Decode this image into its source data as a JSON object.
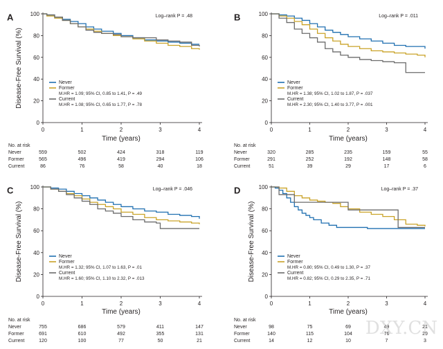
{
  "colors": {
    "Never": "#1f6fb0",
    "Former": "#c9a227",
    "Current": "#6b6b6b",
    "axis": "#231f20"
  },
  "watermark": "DXY.CN",
  "chart_data": [
    {
      "type": "line",
      "panel": "A",
      "ylabel": "Disease-Free Survival (%)",
      "xlabel": "Time (years)",
      "xlim": [
        0,
        4
      ],
      "ylim": [
        0,
        100
      ],
      "x_ticks": [
        "0",
        "1",
        "2",
        "3",
        "4"
      ],
      "y_ticks": [
        "0",
        "20",
        "40",
        "60",
        "80",
        "100"
      ],
      "logrank": "Log–rank P = .48",
      "legend_position": "lower-left",
      "legend": [
        {
          "name": "Never",
          "lines": []
        },
        {
          "name": "Former",
          "lines": [
            "M.HR = 1.09; 95% CI, 0.85 to 1.41, P = .49"
          ]
        },
        {
          "name": "Current",
          "lines": [
            "M.HR = 1.08; 95% CI, 0.65 to 1.77, P = .78"
          ]
        }
      ],
      "series": [
        {
          "name": "Never",
          "x": [
            0,
            0.1,
            0.3,
            0.5,
            0.7,
            0.9,
            1.1,
            1.3,
            1.5,
            1.8,
            2.0,
            2.3,
            2.6,
            2.9,
            3.2,
            3.5,
            3.8,
            4.0
          ],
          "y": [
            100,
            99,
            97,
            95,
            93,
            91,
            88,
            86,
            84,
            82,
            80,
            78,
            76,
            75,
            74,
            73,
            72,
            72
          ]
        },
        {
          "name": "Former",
          "x": [
            0,
            0.1,
            0.3,
            0.5,
            0.7,
            0.9,
            1.1,
            1.3,
            1.5,
            1.8,
            2.0,
            2.3,
            2.6,
            2.9,
            3.2,
            3.5,
            3.8,
            4.0
          ],
          "y": [
            100,
            98,
            96,
            94,
            91,
            88,
            86,
            84,
            82,
            80,
            79,
            77,
            75,
            73,
            71,
            70,
            68,
            67
          ]
        },
        {
          "name": "Current",
          "x": [
            0,
            0.1,
            0.3,
            0.5,
            0.7,
            0.9,
            1.1,
            1.3,
            1.5,
            1.8,
            2.0,
            2.3,
            2.6,
            2.9,
            3.2,
            3.5,
            3.8,
            4.0
          ],
          "y": [
            100,
            99,
            97,
            94,
            91,
            88,
            85,
            83,
            82,
            81,
            79,
            78,
            78,
            76,
            75,
            74,
            71,
            70
          ]
        }
      ],
      "risk_table": {
        "title": "No. at risk",
        "rows": [
          {
            "label": "Never",
            "values": [
              "559",
              "502",
              "424",
              "318",
              "119"
            ]
          },
          {
            "label": "Former",
            "values": [
              "565",
              "496",
              "419",
              "294",
              "106"
            ]
          },
          {
            "label": "Current",
            "values": [
              "86",
              "76",
              "58",
              "40",
              "18"
            ]
          }
        ]
      }
    },
    {
      "type": "line",
      "panel": "B",
      "ylabel": "",
      "xlabel": "Time (years)",
      "xlim": [
        0,
        4
      ],
      "ylim": [
        0,
        100
      ],
      "x_ticks": [
        "0",
        "1",
        "2",
        "3",
        "4"
      ],
      "y_ticks": [
        "0",
        "20",
        "40",
        "60",
        "80",
        "100"
      ],
      "logrank": "Log–rank P = .011",
      "legend_position": "lower-left",
      "legend": [
        {
          "name": "Never",
          "lines": []
        },
        {
          "name": "Former",
          "lines": [
            "M.HR = 1.38; 95% CI, 1.02 to 1.87, P = .037"
          ]
        },
        {
          "name": "Current",
          "lines": [
            "M.HR = 2.30; 95% CI, 1.40 to 3.77, P = .001"
          ]
        }
      ],
      "series": [
        {
          "name": "Never",
          "x": [
            0,
            0.2,
            0.4,
            0.6,
            0.8,
            1.0,
            1.2,
            1.4,
            1.6,
            1.8,
            2.0,
            2.3,
            2.6,
            2.9,
            3.2,
            3.5,
            3.8,
            4.0
          ],
          "y": [
            100,
            99,
            98,
            96,
            94,
            91,
            88,
            85,
            83,
            81,
            79,
            77,
            75,
            73,
            71,
            70,
            70,
            68
          ]
        },
        {
          "name": "Former",
          "x": [
            0,
            0.2,
            0.4,
            0.6,
            0.8,
            1.0,
            1.2,
            1.4,
            1.6,
            1.8,
            2.0,
            2.3,
            2.6,
            2.9,
            3.2,
            3.5,
            3.8,
            4.0
          ],
          "y": [
            100,
            98,
            96,
            93,
            90,
            86,
            82,
            78,
            75,
            72,
            70,
            68,
            66,
            65,
            64,
            63,
            62,
            60
          ]
        },
        {
          "name": "Current",
          "x": [
            0,
            0.2,
            0.4,
            0.6,
            0.8,
            1.0,
            1.2,
            1.4,
            1.6,
            1.8,
            2.0,
            2.3,
            2.6,
            2.9,
            3.2,
            3.4,
            3.5,
            3.8,
            4.0
          ],
          "y": [
            100,
            96,
            92,
            86,
            82,
            78,
            74,
            68,
            65,
            62,
            60,
            58,
            57,
            56,
            55,
            55,
            46,
            46,
            46
          ]
        }
      ],
      "risk_table": {
        "title": "No. at risk",
        "rows": [
          {
            "label": "Never",
            "values": [
              "320",
              "285",
              "235",
              "159",
              "55"
            ]
          },
          {
            "label": "Former",
            "values": [
              "291",
              "252",
              "192",
              "148",
              "58"
            ]
          },
          {
            "label": "Current",
            "values": [
              "51",
              "39",
              "29",
              "17",
              "6"
            ]
          }
        ]
      }
    },
    {
      "type": "line",
      "panel": "C",
      "ylabel": "Disease-Free Survival (%)",
      "xlabel": "Time (years)",
      "xlim": [
        0,
        4
      ],
      "ylim": [
        0,
        100
      ],
      "x_ticks": [
        "0",
        "1",
        "2",
        "3",
        "4"
      ],
      "y_ticks": [
        "0",
        "20",
        "40",
        "60",
        "80",
        "100"
      ],
      "logrank": "Log–rank P = .046",
      "legend_position": "lower-left",
      "legend": [
        {
          "name": "Never",
          "lines": []
        },
        {
          "name": "Former",
          "lines": [
            "M.HR = 1.32; 95% CI, 1.07 to 1.63, P = .01"
          ]
        },
        {
          "name": "Current",
          "lines": [
            "M.HR = 1.60; 95% CI, 1.10 to 2.32, P = .013"
          ]
        }
      ],
      "series": [
        {
          "name": "Never",
          "x": [
            0,
            0.2,
            0.4,
            0.6,
            0.8,
            1.0,
            1.2,
            1.4,
            1.6,
            1.8,
            2.0,
            2.3,
            2.6,
            2.9,
            3.2,
            3.5,
            3.8,
            4.0
          ],
          "y": [
            100,
            99,
            98,
            96,
            94,
            92,
            90,
            88,
            86,
            84,
            82,
            80,
            78,
            77,
            75,
            74,
            73,
            71
          ]
        },
        {
          "name": "Former",
          "x": [
            0,
            0.2,
            0.4,
            0.6,
            0.8,
            1.0,
            1.2,
            1.4,
            1.6,
            1.8,
            2.0,
            2.3,
            2.6,
            2.9,
            3.2,
            3.5,
            3.8,
            4.0
          ],
          "y": [
            100,
            98,
            96,
            94,
            92,
            89,
            86,
            84,
            82,
            80,
            77,
            75,
            72,
            70,
            69,
            68,
            67,
            66
          ]
        },
        {
          "name": "Current",
          "x": [
            0,
            0.2,
            0.4,
            0.6,
            0.8,
            1.0,
            1.2,
            1.4,
            1.6,
            1.8,
            2.0,
            2.3,
            2.6,
            2.9,
            3.0,
            3.2,
            3.5,
            3.8,
            4.0
          ],
          "y": [
            100,
            98,
            96,
            93,
            90,
            87,
            84,
            80,
            78,
            76,
            73,
            70,
            68,
            67,
            62,
            62,
            62,
            62,
            62
          ]
        }
      ],
      "risk_table": {
        "title": "No. at risk",
        "rows": [
          {
            "label": "Never",
            "values": [
              "755",
              "686",
              "579",
              "411",
              "147"
            ]
          },
          {
            "label": "Former",
            "values": [
              "691",
              "610",
              "492",
              "355",
              "131"
            ]
          },
          {
            "label": "Current",
            "values": [
              "120",
              "100",
              "77",
              "50",
              "21"
            ]
          }
        ]
      }
    },
    {
      "type": "line",
      "panel": "D",
      "ylabel": "Disease-Free Survival (%)",
      "xlabel": "Time (years)",
      "xlim": [
        0,
        4
      ],
      "ylim": [
        0,
        100
      ],
      "x_ticks": [
        "0",
        "1",
        "2",
        "3",
        "4"
      ],
      "y_ticks": [
        "0",
        "20",
        "40",
        "60",
        "80",
        "100"
      ],
      "logrank": "Log–rank P = .37",
      "legend_position": "lower-left",
      "legend": [
        {
          "name": "Never",
          "lines": []
        },
        {
          "name": "Former",
          "lines": [
            "M.HR = 0.80; 95% CI, 0.49 to 1.30, P = .37"
          ]
        },
        {
          "name": "Current",
          "lines": [
            "M.HR = 0.82; 95% CI, 0.29 to 2.35, P = .71"
          ]
        }
      ],
      "series": [
        {
          "name": "Never",
          "x": [
            0,
            0.1,
            0.2,
            0.3,
            0.4,
            0.5,
            0.6,
            0.7,
            0.8,
            0.9,
            1.0,
            1.1,
            1.3,
            1.5,
            1.7,
            2.0,
            2.5,
            3.0,
            3.5,
            4.0
          ],
          "y": [
            100,
            99,
            97,
            94,
            90,
            86,
            82,
            79,
            76,
            74,
            72,
            70,
            67,
            65,
            63,
            63,
            62,
            62,
            62,
            62
          ]
        },
        {
          "name": "Former",
          "x": [
            0,
            0.2,
            0.4,
            0.6,
            0.8,
            1.0,
            1.2,
            1.4,
            1.6,
            1.8,
            2.0,
            2.3,
            2.6,
            2.9,
            3.2,
            3.5,
            3.8,
            4.0
          ],
          "y": [
            100,
            99,
            96,
            92,
            90,
            88,
            87,
            86,
            85,
            82,
            80,
            77,
            75,
            73,
            70,
            66,
            65,
            64
          ]
        },
        {
          "name": "Current",
          "x": [
            0,
            0.2,
            0.4,
            0.6,
            0.8,
            1.0,
            1.5,
            2.0,
            2.5,
            3.0,
            3.2,
            3.3,
            3.5,
            4.0
          ],
          "y": [
            100,
            93,
            93,
            86,
            86,
            86,
            86,
            79,
            79,
            79,
            79,
            63,
            63,
            63
          ]
        }
      ],
      "risk_table": {
        "title": "No. at risk",
        "rows": [
          {
            "label": "Never",
            "values": [
              "98",
              "75",
              "69",
              "49",
              "21"
            ]
          },
          {
            "label": "Former",
            "values": [
              "140",
              "115",
              "104",
              "76",
              "29"
            ]
          },
          {
            "label": "Current",
            "values": [
              "14",
              "12",
              "10",
              "7",
              "3"
            ]
          }
        ]
      }
    }
  ]
}
